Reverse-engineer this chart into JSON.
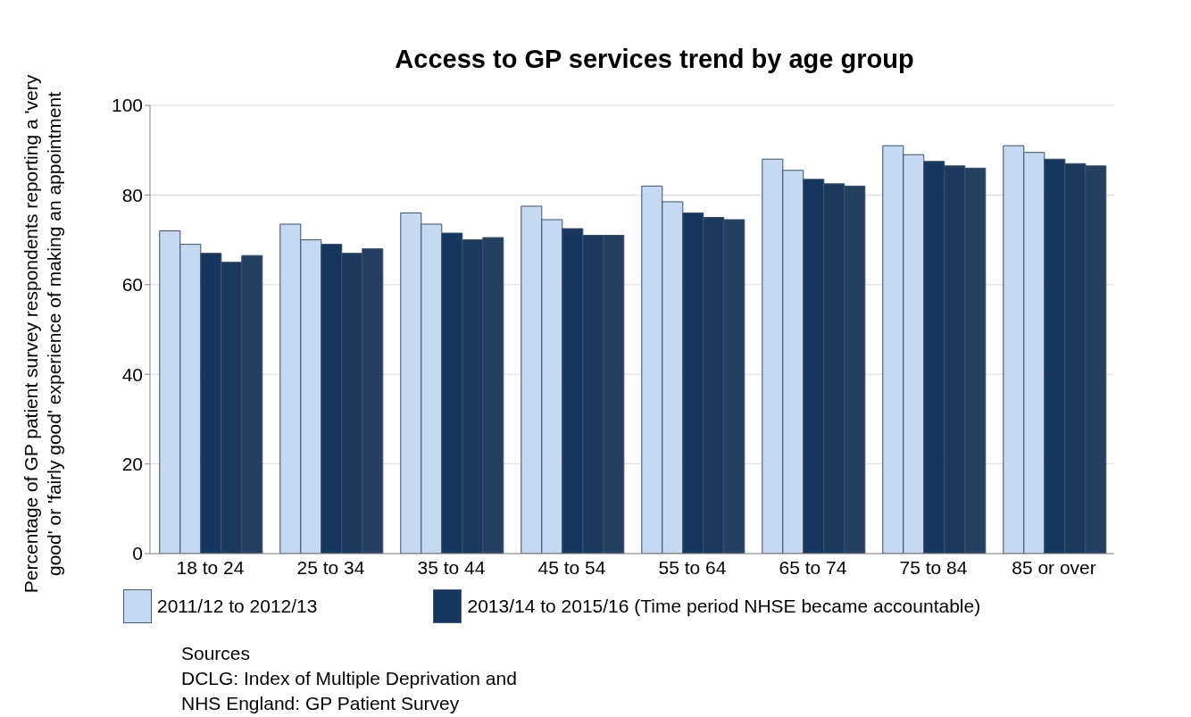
{
  "chart_data": {
    "type": "bar",
    "title": "Access to GP services trend by age group",
    "ylabel": "Percentage of GP patient survey respondents reporting a 'very good' or 'fairly good' experience of making an appointment",
    "categories": [
      "18 to 24",
      "25 to 34",
      "35 to 44",
      "45 to 54",
      "55 to 64",
      "65 to 74",
      "75 to 84",
      "85 or over"
    ],
    "series": [
      {
        "name": "2011/12 to 2012/13",
        "color": "#c6d9f1",
        "values": [
          72,
          73.5,
          76,
          77.5,
          82,
          88,
          91,
          91
        ]
      },
      {
        "color": "#c6d9f1",
        "values": [
          69,
          70,
          73.5,
          74.5,
          78.5,
          85.5,
          89,
          89.5
        ]
      },
      {
        "name": "2013/14 to 2015/16 (Time period NHSE became accountable)",
        "color": "#17365d",
        "values": [
          67,
          69,
          71.5,
          72.5,
          76,
          83.5,
          87.5,
          88
        ]
      },
      {
        "color": "#1c3a5e",
        "values": [
          65,
          67,
          70,
          71,
          75,
          82.5,
          86.5,
          87
        ]
      },
      {
        "color": "#243f60",
        "values": [
          66.5,
          68,
          70.5,
          71,
          74.5,
          82,
          86,
          86.5
        ]
      }
    ],
    "ylim": [
      0,
      100
    ],
    "yticks": [
      0,
      20,
      40,
      60,
      80,
      100
    ],
    "grid": "y",
    "legend": "bottom",
    "annotations": [
      "Sources",
      "DCLG: Index of Multiple Deprivation and",
      "NHS England: GP Patient Survey"
    ]
  }
}
